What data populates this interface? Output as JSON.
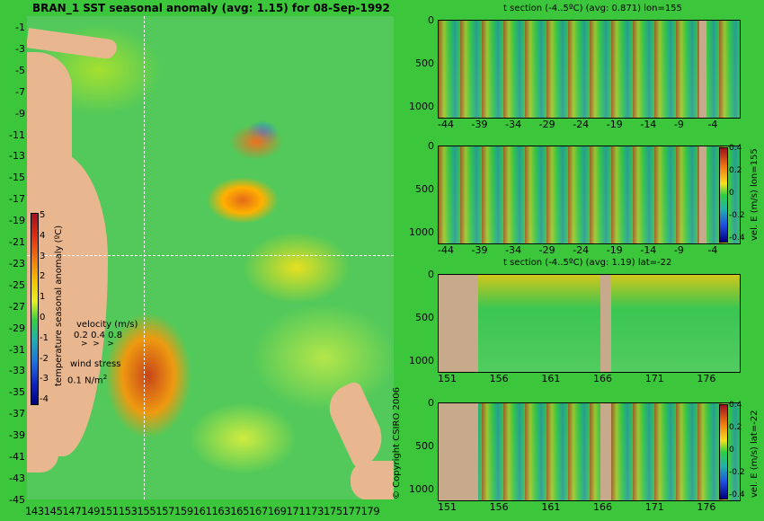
{
  "map": {
    "title": "BRAN_1 SST seasonal anomaly (avg: 1.15) for 08-Sep-1992",
    "lat_ticks": [
      "-1",
      "-3",
      "-5",
      "-7",
      "-9",
      "-11",
      "-13",
      "-15",
      "-17",
      "-19",
      "-21",
      "-23",
      "-25",
      "-27",
      "-29",
      "-31",
      "-33",
      "-35",
      "-37",
      "-39",
      "-41",
      "-43",
      "-45"
    ],
    "lon_ticks_text": "143145147149151153155157159161163165167169171173175177179",
    "colorbar_ticks": [
      "5",
      "4",
      "3",
      "2",
      "1",
      "0",
      "-1",
      "-2",
      "-3",
      "-4"
    ],
    "colorbar_label": "temperature seasonal anomaly (ºC)",
    "velocity_title": "velocity (m/s)",
    "velocity_values": "0.2 0.4 0.8",
    "wind_title": "wind stress",
    "wind_value": "0.1 N/m",
    "wind_sup": "2",
    "copyright": "© Copyright CSIRO 2006"
  },
  "panels": [
    {
      "title": "t section (-4..5ºC) (avg: 0.871) lon=155",
      "y_ticks": [
        "0",
        "500",
        "1000"
      ],
      "x_ticks": [
        "-44",
        "-39",
        "-34",
        "-29",
        "-24",
        "-19",
        "-14",
        "-9",
        "-4"
      ],
      "side_label": ""
    },
    {
      "title": "",
      "y_ticks": [
        "0",
        "500",
        "1000"
      ],
      "x_ticks": [
        "-44",
        "-39",
        "-34",
        "-29",
        "-24",
        "-19",
        "-14",
        "-9",
        "-4"
      ],
      "side_label": "vel. E (m/s) lon=155",
      "cb_ticks": [
        "0.4",
        "0.2",
        "0",
        "-0.2",
        "-0.4"
      ]
    },
    {
      "title": "t section (-4..5ºC) (avg: 1.19) lat=-22",
      "y_ticks": [
        "0",
        "500",
        "1000"
      ],
      "x_ticks": [
        "151",
        "156",
        "161",
        "166",
        "171",
        "176"
      ],
      "side_label": ""
    },
    {
      "title": "",
      "y_ticks": [
        "0",
        "500",
        "1000"
      ],
      "x_ticks": [
        "151",
        "156",
        "161",
        "166",
        "171",
        "176"
      ],
      "side_label": "vel. E (m/s) lat=-22",
      "cb_ticks": [
        "0.4",
        "0.2",
        "0",
        "-0.2",
        "-0.4"
      ]
    }
  ]
}
